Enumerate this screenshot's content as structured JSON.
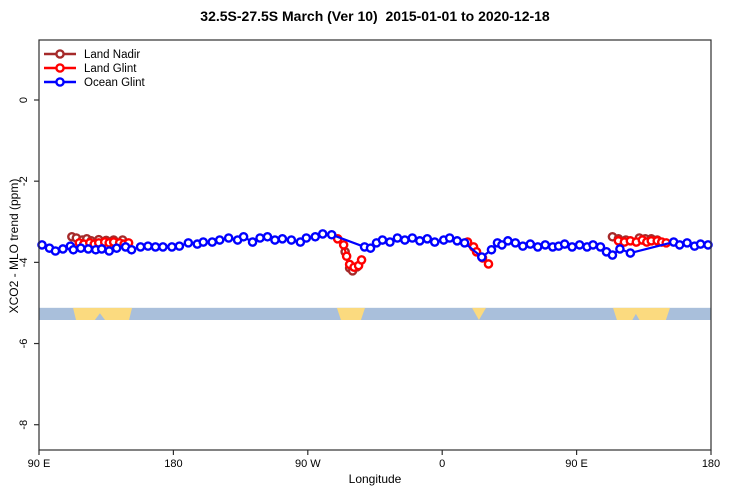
{
  "title": "32.5S-27.5S March (Ver 10)  2015-01-01 to 2020-12-18",
  "legend": {
    "position": "top-left",
    "items": [
      {
        "label": "Land Nadir",
        "color": "#A52A2A"
      },
      {
        "label": "Land Glint",
        "color": "#FF0000"
      },
      {
        "label": "Ocean Glint",
        "color": "#0000FF"
      }
    ]
  },
  "chart_data": {
    "type": "line",
    "title": "32.5S-27.5S March (Ver 10)  2015-01-01 to 2020-12-18",
    "xlabel": "Longitude",
    "ylabel": "XCO2 - MLO trend (ppm)",
    "grid": false,
    "x_axis": {
      "description": "longitude wrapping eastward from 90E through the dateline and back to 180",
      "range_deg": [
        0,
        450
      ],
      "tick_positions_deg": [
        0,
        90,
        180,
        270,
        360,
        450
      ],
      "tick_labels": [
        "90 E",
        "180",
        "90 W",
        "0",
        "90 E",
        "180"
      ]
    },
    "y_axis": {
      "range": [
        1.5,
        -8.6
      ],
      "tick_values": [
        0,
        -2,
        -4,
        -6,
        -8
      ],
      "tick_labels": [
        "0",
        "-2",
        "-4",
        "-6",
        "-8"
      ]
    },
    "series": [
      {
        "name": "Land Nadir",
        "color": "#A52A2A",
        "marker": "open-circle",
        "segments": [
          [
            [
              22,
              -3.37
            ],
            [
              25,
              -3.4
            ],
            [
              29,
              -3.45
            ],
            [
              32,
              -3.42
            ],
            [
              35,
              -3.47
            ],
            [
              40,
              -3.44
            ],
            [
              45,
              -3.46
            ],
            [
              50,
              -3.45
            ],
            [
              56,
              -3.45
            ]
          ],
          [
            [
              205,
              -3.74
            ],
            [
              208,
              -4.14
            ],
            [
              210,
              -4.21
            ],
            [
              213,
              -4.11
            ]
          ],
          [
            [
              384,
              -3.37
            ],
            [
              388,
              -3.42
            ],
            [
              393,
              -3.45
            ],
            [
              402,
              -3.4
            ],
            [
              406,
              -3.42
            ],
            [
              410,
              -3.42
            ],
            [
              414,
              -3.45
            ]
          ]
        ]
      },
      {
        "name": "Land Glint",
        "color": "#FF0000",
        "marker": "open-circle",
        "segments": [
          [
            [
              27,
              -3.52
            ],
            [
              30,
              -3.55
            ],
            [
              34,
              -3.52
            ],
            [
              37,
              -3.55
            ],
            [
              40,
              -3.52
            ],
            [
              44,
              -3.5
            ],
            [
              47,
              -3.52
            ],
            [
              50,
              -3.5
            ],
            [
              54,
              -3.52
            ],
            [
              57,
              -3.55
            ],
            [
              60,
              -3.52
            ]
          ],
          [
            [
              200,
              -3.42
            ],
            [
              204,
              -3.57
            ],
            [
              206,
              -3.85
            ],
            [
              208,
              -4.05
            ],
            [
              211,
              -4.12
            ],
            [
              214,
              -4.08
            ],
            [
              216,
              -3.94
            ]
          ],
          [
            [
              287,
              -3.5
            ],
            [
              291,
              -3.62
            ],
            [
              293,
              -3.74
            ],
            [
              297,
              -3.89
            ],
            [
              301,
              -4.04
            ]
          ],
          [
            [
              388,
              -3.47
            ],
            [
              392,
              -3.5
            ],
            [
              396,
              -3.47
            ],
            [
              400,
              -3.5
            ],
            [
              404,
              -3.45
            ],
            [
              407,
              -3.5
            ],
            [
              410,
              -3.47
            ],
            [
              414,
              -3.47
            ],
            [
              417,
              -3.5
            ],
            [
              420,
              -3.52
            ]
          ]
        ]
      },
      {
        "name": "Ocean Glint",
        "color": "#0000FF",
        "marker": "open-circle",
        "segments": [
          [
            [
              2,
              -3.57
            ],
            [
              7,
              -3.65
            ],
            [
              11,
              -3.72
            ],
            [
              16,
              -3.67
            ],
            [
              21,
              -3.6
            ],
            [
              23,
              -3.69
            ],
            [
              28,
              -3.65
            ],
            [
              33,
              -3.67
            ],
            [
              38,
              -3.69
            ],
            [
              42,
              -3.67
            ],
            [
              47,
              -3.72
            ],
            [
              52,
              -3.65
            ],
            [
              58,
              -3.62
            ],
            [
              62,
              -3.69
            ],
            [
              68,
              -3.62
            ],
            [
              73,
              -3.6
            ],
            [
              78,
              -3.62
            ],
            [
              83,
              -3.62
            ],
            [
              89,
              -3.62
            ],
            [
              94,
              -3.6
            ],
            [
              100,
              -3.52
            ],
            [
              106,
              -3.55
            ],
            [
              110,
              -3.5
            ],
            [
              116,
              -3.5
            ],
            [
              121,
              -3.45
            ],
            [
              127,
              -3.4
            ],
            [
              133,
              -3.45
            ],
            [
              137,
              -3.37
            ],
            [
              143,
              -3.5
            ],
            [
              148,
              -3.4
            ],
            [
              153,
              -3.37
            ],
            [
              158,
              -3.45
            ],
            [
              163,
              -3.42
            ],
            [
              169,
              -3.45
            ],
            [
              175,
              -3.5
            ],
            [
              179,
              -3.4
            ],
            [
              185,
              -3.37
            ],
            [
              190,
              -3.3
            ],
            [
              196,
              -3.32
            ],
            [
              218,
              -3.62
            ],
            [
              222,
              -3.65
            ],
            [
              226,
              -3.52
            ],
            [
              230,
              -3.45
            ],
            [
              235,
              -3.5
            ],
            [
              240,
              -3.4
            ],
            [
              245,
              -3.45
            ],
            [
              250,
              -3.4
            ],
            [
              255,
              -3.47
            ],
            [
              260,
              -3.42
            ],
            [
              265,
              -3.5
            ],
            [
              271,
              -3.45
            ],
            [
              275,
              -3.4
            ],
            [
              280,
              -3.47
            ],
            [
              285,
              -3.52
            ],
            [
              296.5,
              -3.87
            ],
            [
              303,
              -3.69
            ],
            [
              307,
              -3.52
            ],
            [
              310,
              -3.57
            ],
            [
              314,
              -3.47
            ],
            [
              319,
              -3.52
            ],
            [
              324,
              -3.6
            ],
            [
              329,
              -3.55
            ],
            [
              334,
              -3.62
            ],
            [
              339,
              -3.57
            ],
            [
              344,
              -3.62
            ],
            [
              348,
              -3.6
            ],
            [
              352,
              -3.55
            ],
            [
              357,
              -3.62
            ],
            [
              362,
              -3.57
            ],
            [
              367,
              -3.62
            ],
            [
              371,
              -3.57
            ],
            [
              376,
              -3.62
            ],
            [
              380,
              -3.74
            ],
            [
              384,
              -3.82
            ],
            [
              389,
              -3.67
            ],
            [
              396,
              -3.77
            ],
            [
              425,
              -3.5
            ],
            [
              429,
              -3.57
            ],
            [
              434,
              -3.52
            ],
            [
              439,
              -3.6
            ],
            [
              443,
              -3.55
            ],
            [
              448,
              -3.57
            ]
          ]
        ]
      }
    ],
    "surface_band": {
      "description": "land/ocean strip across latitude band",
      "ocean_color": "#A9BFDB",
      "land_color": "#FBDA7F",
      "y_top_ppm": -5.12,
      "y_bottom_ppm": -5.42,
      "land_polygons": [
        {
          "name": "australia-west-instance",
          "points_deg_frac": [
            [
              22.8,
              0
            ],
            [
              62.3,
              0
            ],
            [
              60.3,
              1
            ],
            [
              44.2,
              1
            ],
            [
              40.8,
              0.45
            ],
            [
              37.4,
              1
            ],
            [
              24.8,
              1
            ]
          ]
        },
        {
          "name": "south-america",
          "points_deg_frac": [
            [
              199.5,
              0
            ],
            [
              218.3,
              0
            ],
            [
              215.6,
              1
            ],
            [
              202.2,
              1
            ]
          ]
        },
        {
          "name": "southern-africa",
          "points_deg_frac": [
            [
              290,
              0
            ],
            [
              299.3,
              0
            ],
            [
              294.6,
              1
            ]
          ]
        },
        {
          "name": "australia-east-instance",
          "points_deg_frac": [
            [
              384.4,
              0
            ],
            [
              422.5,
              0
            ],
            [
              419.8,
              1
            ],
            [
              402.1,
              1
            ],
            [
              399.7,
              0.5
            ],
            [
              397.3,
              1
            ],
            [
              387,
              1
            ]
          ]
        }
      ]
    }
  }
}
